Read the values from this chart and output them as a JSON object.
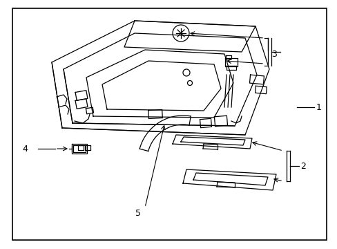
{
  "background_color": "#ffffff",
  "border_color": "#000000",
  "line_color": "#000000",
  "text_color": "#000000",
  "figsize": [
    4.89,
    3.6
  ],
  "dpi": 100,
  "border": [
    18,
    12,
    455,
    335
  ]
}
